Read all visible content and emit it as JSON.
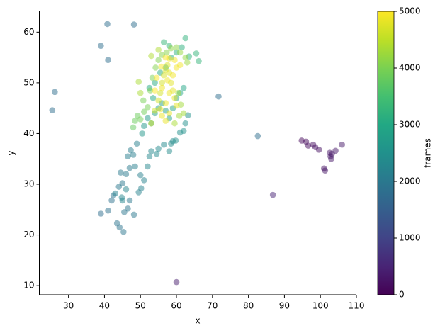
{
  "chart_data": {
    "type": "scatter",
    "xlabel": "x",
    "ylabel": "y",
    "colorbar_label": "frames",
    "colormap": "viridis",
    "alpha": 0.5,
    "xlim": [
      21.9,
      110
    ],
    "ylim": [
      8.2,
      64.1
    ],
    "clim": [
      0,
      5000
    ],
    "xticks": [
      30,
      40,
      50,
      60,
      70,
      80,
      90,
      100,
      110
    ],
    "yticks": [
      10,
      20,
      30,
      40,
      50,
      60
    ],
    "cticks": [
      0,
      1000,
      2000,
      3000,
      4000,
      5000
    ],
    "x": [
      94.8,
      96,
      96.6,
      98,
      98.6,
      99.6,
      101,
      101.3,
      102.6,
      102.8,
      103,
      103.2,
      104.2,
      106,
      60,
      86.8,
      25.5,
      26.2,
      39,
      40.8,
      41,
      48.2,
      71.7,
      82.6,
      39,
      41,
      42,
      42.5,
      43.5,
      44.2,
      45.3,
      45.5,
      46.5,
      47,
      48.2,
      44,
      45,
      44.5,
      46,
      47,
      46.5,
      48,
      47.3,
      49,
      48.5,
      50,
      50.2,
      51,
      49.5,
      43,
      45,
      44.8,
      46,
      52,
      52.5,
      53,
      54.5,
      55,
      56.5,
      58,
      58.5,
      59,
      59.8,
      61,
      62.5,
      63.2,
      62,
      50.5,
      51,
      52,
      53,
      54,
      55,
      56,
      57,
      58,
      59,
      60,
      61,
      62,
      53.5,
      52.5,
      54,
      55.5,
      57,
      58.5,
      60,
      61.5,
      62.5,
      63.5,
      65.5,
      66.2,
      56.5,
      58,
      48,
      48.5,
      49.2,
      50,
      51,
      52,
      50.8,
      52.7,
      53.3,
      54.2,
      55,
      56,
      57.3,
      58.5,
      60,
      61,
      62.5,
      63,
      60.5,
      61.2,
      62,
      60.8,
      59.5,
      50,
      49.5,
      53,
      55,
      53,
      54,
      55,
      55.5,
      56,
      56.5,
      57,
      57.5,
      58,
      58.5,
      59,
      59.5,
      60,
      58,
      57,
      56,
      55.5,
      57,
      58,
      56,
      57.5,
      59,
      60,
      61,
      59.5,
      58,
      57,
      55.8,
      54.5,
      54
    ],
    "y": [
      38.6,
      38.4,
      37.6,
      37.8,
      37.3,
      36.8,
      33.1,
      32.7,
      36.2,
      35.5,
      35,
      36,
      36.6,
      37.8,
      10.7,
      27.9,
      44.6,
      48.2,
      57.3,
      61.6,
      54.5,
      61.5,
      47.3,
      39.5,
      24.2,
      24.8,
      26.8,
      27.8,
      22.3,
      21.5,
      20.6,
      24.5,
      25.2,
      26.8,
      24,
      29.5,
      30.2,
      32.3,
      32,
      33.2,
      35.5,
      35.8,
      36.7,
      38,
      33.5,
      31.8,
      29.2,
      30.8,
      28.4,
      28.2,
      26.8,
      27.4,
      29,
      33.5,
      35.5,
      36.5,
      36,
      37,
      37.8,
      36.5,
      38,
      38.5,
      38.6,
      40.2,
      42,
      43.6,
      40.5,
      40,
      41.5,
      43,
      42,
      44,
      45,
      46,
      44.5,
      43,
      45,
      47,
      48,
      49,
      47,
      49,
      50,
      52,
      53,
      55,
      56,
      57,
      58.8,
      55.2,
      55.8,
      54.3,
      58,
      57.3,
      41.2,
      42.5,
      43.5,
      42.8,
      44.3,
      45.2,
      46.5,
      48.5,
      51,
      53,
      54.5,
      55.5,
      56,
      56.8,
      57,
      56,
      55,
      54,
      48,
      45.7,
      44,
      43.5,
      42,
      48,
      50.2,
      55.3,
      56.5,
      42,
      44.5,
      46.5,
      48,
      50,
      51.5,
      52.5,
      53.5,
      52,
      50,
      48.5,
      47,
      45.5,
      44,
      42.5,
      43.5,
      44.8,
      46,
      48,
      49,
      50.5,
      51.5,
      53,
      53.5,
      54.5,
      54.8,
      55,
      53.2,
      51,
      48.5
    ],
    "c": [
      100,
      120,
      150,
      170,
      190,
      210,
      230,
      250,
      270,
      290,
      300,
      310,
      320,
      340,
      400,
      500,
      1800,
      1800,
      1800,
      1800,
      1800,
      1800,
      1800,
      1800,
      1800,
      1850,
      1850,
      1900,
      1900,
      1900,
      1950,
      1950,
      1950,
      2000,
      2000,
      2000,
      2000,
      2050,
      2050,
      2050,
      2100,
      2100,
      2100,
      2150,
      2150,
      2150,
      2200,
      2200,
      2200,
      2200,
      2250,
      2250,
      2250,
      2300,
      2300,
      2300,
      2350,
      2350,
      2350,
      2400,
      2400,
      2400,
      2450,
      2450,
      2450,
      2500,
      2500,
      2600,
      2650,
      2700,
      2700,
      2750,
      2800,
      2800,
      2850,
      2850,
      2900,
      2900,
      2950,
      2950,
      3000,
      3000,
      3050,
      3050,
      3100,
      3100,
      3150,
      3150,
      3200,
      3200,
      3250,
      3250,
      3300,
      3300,
      3800,
      3850,
      3850,
      3900,
      3900,
      3950,
      3950,
      4000,
      4000,
      4050,
      4050,
      4100,
      4100,
      4150,
      4150,
      4200,
      4200,
      4250,
      4250,
      4300,
      4300,
      4300,
      4350,
      4350,
      4350,
      4400,
      4400,
      4600,
      4620,
      4640,
      4660,
      4680,
      4700,
      4720,
      4740,
      4760,
      4780,
      4800,
      4810,
      4820,
      4830,
      4840,
      4850,
      4860,
      4870,
      4880,
      4890,
      4900,
      4910,
      4920,
      4930,
      4940,
      4950,
      4960,
      4970,
      4980,
      4990
    ]
  }
}
